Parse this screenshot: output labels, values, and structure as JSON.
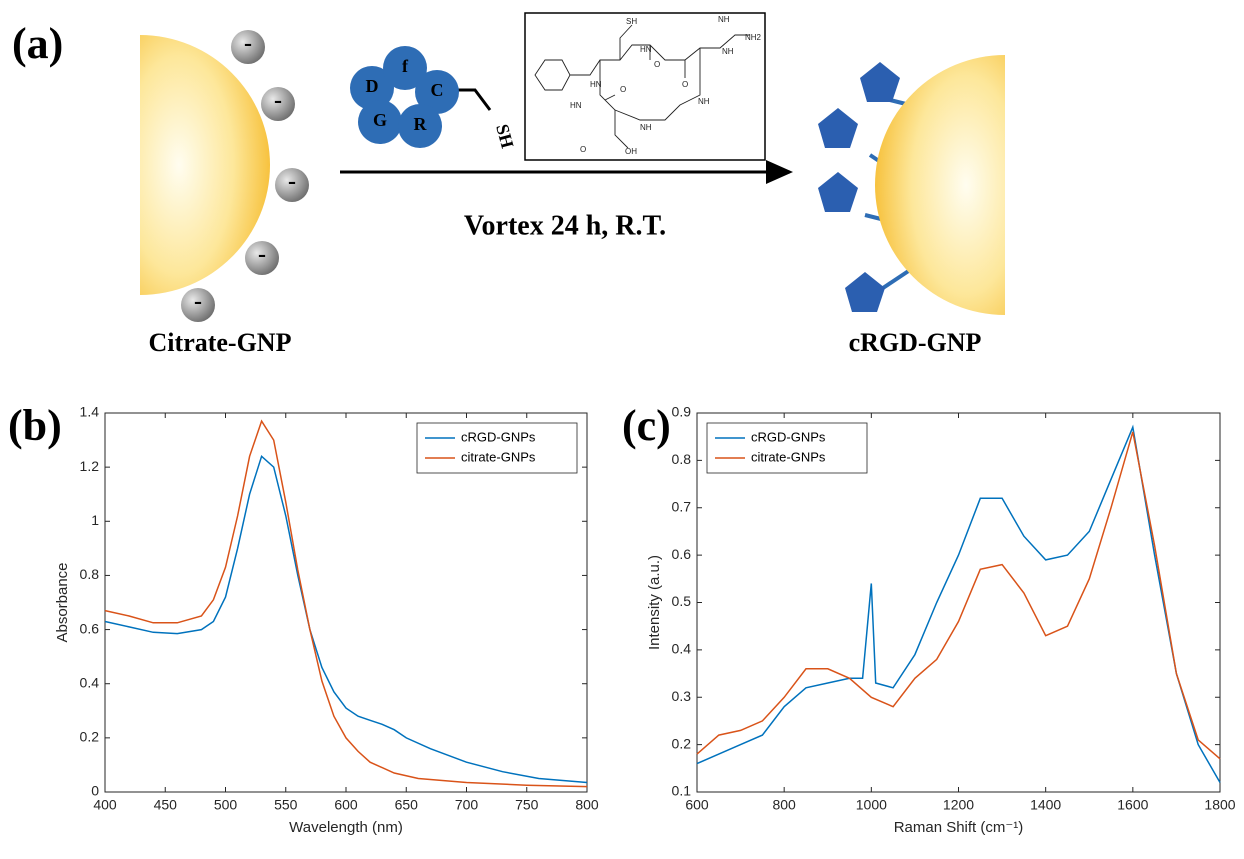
{
  "panel_a": {
    "label": "(a)",
    "left_caption": "Citrate-GNP",
    "right_caption": "cRGD-GNP",
    "reaction_condition": "Vortex 24 h, R.T.",
    "charges": [
      "-",
      "-",
      "-",
      "-",
      "-"
    ],
    "peptide_residues": [
      "D",
      "f",
      "C",
      "G",
      "R"
    ],
    "thiol": "SH",
    "structure_labels": [
      "SH",
      "HN",
      "NH",
      "NH2",
      "NH",
      "HN",
      "O",
      "O",
      "NH",
      "HN",
      "O",
      "NH",
      "O",
      "OH"
    ]
  },
  "chart_data": [
    {
      "type": "line",
      "panel_label": "(b)",
      "x_label": "Wavelength (nm)",
      "y_label": "Absorbance",
      "xlim": [
        400,
        800
      ],
      "xticks": [
        400,
        450,
        500,
        550,
        600,
        650,
        700,
        750,
        800
      ],
      "ylim": [
        0,
        1.4
      ],
      "yticks": [
        0,
        0.2,
        0.4,
        0.6,
        0.8,
        1,
        1.2,
        1.4
      ],
      "grid": false,
      "legend": "upper right",
      "series": [
        {
          "name": "cRGD-GNPs",
          "color": "#0072bd",
          "x": [
            400,
            420,
            440,
            460,
            480,
            490,
            500,
            510,
            520,
            530,
            540,
            550,
            560,
            570,
            580,
            590,
            600,
            610,
            620,
            630,
            640,
            650,
            670,
            700,
            730,
            760,
            800
          ],
          "values": [
            0.63,
            0.61,
            0.59,
            0.585,
            0.6,
            0.63,
            0.72,
            0.9,
            1.1,
            1.24,
            1.2,
            1.02,
            0.8,
            0.6,
            0.46,
            0.37,
            0.31,
            0.28,
            0.265,
            0.25,
            0.23,
            0.2,
            0.16,
            0.11,
            0.075,
            0.05,
            0.035
          ]
        },
        {
          "name": "citrate-GNPs",
          "color": "#d95319",
          "x": [
            400,
            420,
            440,
            460,
            480,
            490,
            500,
            510,
            520,
            530,
            540,
            550,
            560,
            570,
            580,
            590,
            600,
            610,
            620,
            640,
            660,
            700,
            750,
            800
          ],
          "values": [
            0.67,
            0.65,
            0.625,
            0.625,
            0.65,
            0.71,
            0.83,
            1.02,
            1.24,
            1.37,
            1.3,
            1.07,
            0.82,
            0.6,
            0.41,
            0.28,
            0.2,
            0.15,
            0.11,
            0.07,
            0.05,
            0.035,
            0.025,
            0.02
          ]
        }
      ]
    },
    {
      "type": "line",
      "panel_label": "(c)",
      "x_label": "Raman Shift (cm⁻¹)",
      "y_label": "Intensity (a.u.)",
      "xlim": [
        600,
        1800
      ],
      "xticks": [
        600,
        800,
        1000,
        1200,
        1400,
        1600,
        1800
      ],
      "ylim": [
        0.1,
        0.9
      ],
      "yticks": [
        0.1,
        0.2,
        0.3,
        0.4,
        0.5,
        0.6,
        0.7,
        0.8,
        0.9
      ],
      "grid": false,
      "legend": "upper left",
      "series": [
        {
          "name": "cRGD-GNPs",
          "color": "#0072bd",
          "x": [
            600,
            650,
            700,
            750,
            800,
            850,
            900,
            950,
            980,
            1000,
            1010,
            1050,
            1100,
            1150,
            1200,
            1250,
            1300,
            1350,
            1400,
            1450,
            1500,
            1550,
            1600,
            1650,
            1700,
            1750,
            1800
          ],
          "values": [
            0.16,
            0.18,
            0.2,
            0.22,
            0.28,
            0.32,
            0.33,
            0.34,
            0.34,
            0.54,
            0.33,
            0.32,
            0.39,
            0.5,
            0.6,
            0.72,
            0.72,
            0.64,
            0.59,
            0.6,
            0.65,
            0.76,
            0.87,
            0.6,
            0.35,
            0.2,
            0.12
          ]
        },
        {
          "name": "citrate-GNPs",
          "color": "#d95319",
          "x": [
            600,
            650,
            700,
            750,
            800,
            850,
            900,
            950,
            1000,
            1050,
            1100,
            1150,
            1200,
            1250,
            1300,
            1350,
            1400,
            1450,
            1500,
            1550,
            1600,
            1650,
            1700,
            1750,
            1800
          ],
          "values": [
            0.18,
            0.22,
            0.23,
            0.25,
            0.3,
            0.36,
            0.36,
            0.34,
            0.3,
            0.28,
            0.34,
            0.38,
            0.46,
            0.57,
            0.58,
            0.52,
            0.43,
            0.45,
            0.55,
            0.7,
            0.86,
            0.62,
            0.35,
            0.21,
            0.17
          ]
        }
      ]
    }
  ]
}
